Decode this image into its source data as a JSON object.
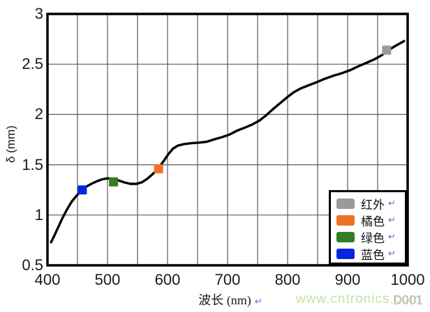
{
  "figure": {
    "x_axis_title": "波长 (nm)",
    "y_axis_title": "δ (mm)",
    "paragraph_mark": "↵"
  },
  "watermark": {
    "text": "www.cntronics.com",
    "color": "#b9dd95"
  },
  "corner_code": {
    "text": "D001",
    "color": "#ababab"
  },
  "chart_data": {
    "type": "line",
    "title": "",
    "xlabel": "波长 (nm)",
    "ylabel": "δ (mm)",
    "xlim": [
      400,
      1000
    ],
    "ylim": [
      0.5,
      3
    ],
    "x_tick_values": [
      400,
      500,
      600,
      700,
      800,
      900,
      1000
    ],
    "x_tick_labels": [
      "400",
      "500",
      "600",
      "700",
      "800",
      "900",
      "1000"
    ],
    "x_minor_grid_step": 50,
    "y_tick_values": [
      0.5,
      1,
      1.5,
      2,
      2.5,
      3
    ],
    "y_tick_labels": [
      "0.5",
      "1",
      "1.5",
      "2",
      "2.5",
      "3"
    ],
    "grid": true,
    "grid_color": "#5a5a5a",
    "border_color": "#000000",
    "line_color": "#000000",
    "series": [
      {
        "points": [
          [
            406,
            0.73
          ],
          [
            411,
            0.79
          ],
          [
            418,
            0.88
          ],
          [
            425,
            0.97
          ],
          [
            432,
            1.05
          ],
          [
            440,
            1.13
          ],
          [
            448,
            1.19
          ],
          [
            456,
            1.24
          ],
          [
            464,
            1.28
          ],
          [
            473,
            1.31
          ],
          [
            482,
            1.335
          ],
          [
            491,
            1.355
          ],
          [
            500,
            1.365
          ],
          [
            509,
            1.36
          ],
          [
            518,
            1.345
          ],
          [
            528,
            1.325
          ],
          [
            538,
            1.31
          ],
          [
            548,
            1.31
          ],
          [
            557,
            1.325
          ],
          [
            566,
            1.36
          ],
          [
            574,
            1.4
          ],
          [
            581,
            1.44
          ],
          [
            588,
            1.49
          ],
          [
            595,
            1.55
          ],
          [
            602,
            1.61
          ],
          [
            609,
            1.66
          ],
          [
            617,
            1.69
          ],
          [
            627,
            1.705
          ],
          [
            640,
            1.715
          ],
          [
            653,
            1.72
          ],
          [
            666,
            1.73
          ],
          [
            679,
            1.755
          ],
          [
            691,
            1.775
          ],
          [
            703,
            1.8
          ],
          [
            716,
            1.84
          ],
          [
            729,
            1.87
          ],
          [
            741,
            1.9
          ],
          [
            753,
            1.94
          ],
          [
            764,
            1.99
          ],
          [
            775,
            2.05
          ],
          [
            787,
            2.11
          ],
          [
            799,
            2.17
          ],
          [
            810,
            2.22
          ],
          [
            822,
            2.26
          ],
          [
            835,
            2.29
          ],
          [
            848,
            2.32
          ],
          [
            862,
            2.355
          ],
          [
            876,
            2.385
          ],
          [
            890,
            2.41
          ],
          [
            904,
            2.44
          ],
          [
            918,
            2.48
          ],
          [
            932,
            2.515
          ],
          [
            945,
            2.55
          ],
          [
            957,
            2.59
          ],
          [
            968,
            2.64
          ],
          [
            979,
            2.68
          ],
          [
            988,
            2.71
          ],
          [
            994,
            2.73
          ]
        ]
      }
    ],
    "markers": [
      {
        "label": "蓝色",
        "color": "#0826df",
        "x": 458,
        "y": 1.25
      },
      {
        "label": "绿色",
        "color": "#337d22",
        "x": 510,
        "y": 1.33
      },
      {
        "label": "橘色",
        "color": "#ed7225",
        "x": 585,
        "y": 1.46
      },
      {
        "label": "红外",
        "color": "#9a9a9a",
        "x": 965,
        "y": 2.64
      }
    ],
    "legend_position": "bottom-right",
    "legend": [
      {
        "label": "红外",
        "color": "#9a9a9a"
      },
      {
        "label": "橘色",
        "color": "#ed7225"
      },
      {
        "label": "绿色",
        "color": "#337d22"
      },
      {
        "label": "蓝色",
        "color": "#0826df"
      }
    ]
  }
}
